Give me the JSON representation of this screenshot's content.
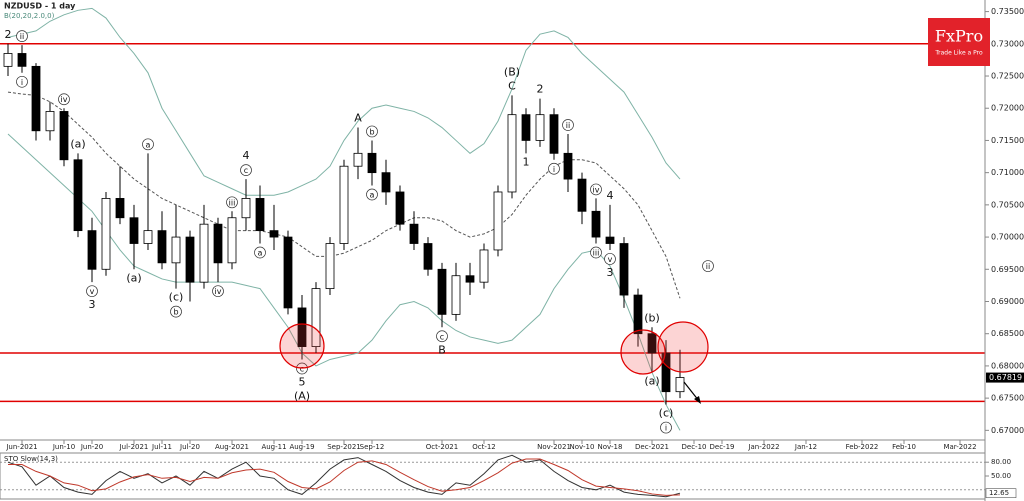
{
  "chart_data": {
    "type": "candlestick",
    "title": "NZDUSD - 1 day",
    "subtitle": "B(20,20,2.0,0)",
    "categories": [
      null,
      "Jun-2021",
      null,
      null,
      "Jun-10",
      null,
      "Jun-20",
      null,
      null,
      "Jul-2021",
      null,
      "Jul-11",
      null,
      "Jul-20",
      null,
      null,
      "Aug-2021",
      null,
      null,
      "Aug-11",
      null,
      "Aug-19",
      null,
      null,
      "Sep-2021",
      null,
      "Sep-12",
      null,
      null,
      null,
      null,
      "Oct-2021",
      null,
      null,
      "Oct-12",
      null,
      null,
      null,
      null,
      "Nov-2021",
      null,
      "Nov-10",
      null,
      "Nov-18",
      null,
      null,
      "Dec-2021",
      null,
      null,
      "Dec-10",
      null,
      "Dec-19",
      null,
      null,
      "Jan-2022",
      null,
      null,
      "Jan-12",
      null,
      null,
      null,
      "Feb-2022",
      null,
      null,
      "Feb-10",
      null,
      null,
      null,
      "Mar-2022",
      null
    ],
    "open": [
      0.7265,
      0.7285,
      0.7265,
      0.7165,
      0.7195,
      0.712,
      0.701,
      0.695,
      0.706,
      0.703,
      0.699,
      0.701,
      0.696,
      0.7,
      0.693,
      0.702,
      0.696,
      0.703,
      0.706,
      0.701,
      0.7,
      0.689,
      0.683,
      0.692,
      0.699,
      0.711,
      0.713,
      0.71,
      0.707,
      0.702,
      0.699,
      0.695,
      0.688,
      0.694,
      0.693,
      0.698,
      0.707,
      0.719,
      0.715,
      0.719,
      0.713,
      0.709,
      0.704,
      0.7,
      0.699,
      0.691,
      0.685,
      0.682,
      0.676,
      null,
      null,
      null,
      null,
      null,
      null,
      null,
      null,
      null,
      null,
      null,
      null,
      null,
      null,
      null,
      null,
      null,
      null,
      null,
      null,
      null
    ],
    "high": [
      0.73,
      0.7298,
      0.727,
      0.721,
      0.72,
      0.713,
      0.703,
      0.707,
      0.711,
      0.705,
      0.713,
      0.704,
      0.705,
      0.701,
      0.705,
      0.703,
      0.704,
      0.709,
      0.708,
      0.705,
      0.701,
      0.691,
      0.693,
      0.7,
      0.712,
      0.717,
      0.715,
      0.712,
      0.708,
      0.704,
      0.7,
      0.696,
      0.696,
      0.696,
      0.699,
      0.708,
      0.722,
      0.72,
      0.7215,
      0.72,
      0.716,
      0.71,
      0.706,
      0.705,
      0.7,
      0.692,
      0.686,
      0.684,
      0.6825,
      null,
      null,
      null,
      null,
      null,
      null,
      null,
      null,
      null,
      null,
      null,
      null,
      null,
      null,
      null,
      null,
      null,
      null,
      null,
      null,
      null
    ],
    "low": [
      0.725,
      0.7255,
      0.715,
      0.715,
      0.711,
      0.7,
      0.693,
      0.694,
      0.702,
      0.695,
      0.698,
      0.695,
      0.692,
      0.69,
      0.692,
      0.693,
      0.695,
      0.701,
      0.699,
      0.698,
      0.688,
      0.681,
      0.682,
      0.691,
      0.698,
      0.709,
      0.708,
      0.705,
      0.701,
      0.698,
      0.694,
      0.686,
      0.687,
      0.691,
      0.692,
      0.697,
      0.706,
      0.713,
      0.714,
      0.712,
      0.707,
      0.702,
      0.699,
      0.698,
      0.689,
      0.683,
      0.679,
      0.674,
      0.675,
      null,
      null,
      null,
      null,
      null,
      null,
      null,
      null,
      null,
      null,
      null,
      null,
      null,
      null,
      null,
      null,
      null,
      null,
      null,
      null,
      null
    ],
    "close": [
      0.7285,
      0.7265,
      0.7165,
      0.7195,
      0.712,
      0.701,
      0.695,
      0.706,
      0.703,
      0.699,
      0.701,
      0.696,
      0.7,
      0.693,
      0.702,
      0.696,
      0.703,
      0.706,
      0.701,
      0.7,
      0.689,
      0.683,
      0.692,
      0.699,
      0.711,
      0.713,
      0.71,
      0.707,
      0.702,
      0.699,
      0.695,
      0.688,
      0.694,
      0.693,
      0.698,
      0.707,
      0.719,
      0.715,
      0.719,
      0.713,
      0.709,
      0.704,
      0.7,
      0.699,
      0.691,
      0.685,
      0.682,
      0.676,
      0.6782,
      null,
      null,
      null,
      null,
      null,
      null,
      null,
      null,
      null,
      null,
      null,
      null,
      null,
      null,
      null,
      null,
      null,
      null,
      null,
      null,
      null
    ],
    "up_color": "#ffffff",
    "down_color": "#000000",
    "bands": [
      {
        "color": "#7fb3a6",
        "dash": false,
        "values": [
          0.731,
          0.7315,
          0.732,
          0.7335,
          0.7345,
          0.7352,
          0.7355,
          0.734,
          0.731,
          0.7285,
          0.7255,
          0.72,
          0.7165,
          0.713,
          0.7095,
          0.7085,
          0.7075,
          0.7065,
          0.7065,
          0.7065,
          0.707,
          0.708,
          0.709,
          0.711,
          0.715,
          0.718,
          0.72,
          0.7205,
          0.72,
          0.7195,
          0.7185,
          0.717,
          0.715,
          0.713,
          0.7145,
          0.718,
          0.723,
          0.729,
          0.7315,
          0.732,
          0.731,
          0.7285,
          0.7265,
          0.7245,
          0.7225,
          0.719,
          0.7155,
          0.7115,
          0.709,
          null,
          null,
          null,
          null,
          null,
          null,
          null,
          null,
          null,
          null,
          null,
          null,
          null,
          null,
          null,
          null,
          null,
          null,
          null,
          null,
          null
        ]
      },
      {
        "color": "#555555",
        "dash": true,
        "values": [
          0.7225,
          0.7222,
          0.722,
          0.721,
          0.7195,
          0.7175,
          0.7155,
          0.713,
          0.711,
          0.709,
          0.7075,
          0.706,
          0.705,
          0.704,
          0.703,
          0.702,
          0.701,
          0.701,
          0.701,
          0.7005,
          0.7,
          0.6985,
          0.697,
          0.697,
          0.6975,
          0.6985,
          0.6995,
          0.701,
          0.702,
          0.703,
          0.703,
          0.7025,
          0.701,
          0.7,
          0.7005,
          0.7015,
          0.7035,
          0.7065,
          0.709,
          0.711,
          0.712,
          0.712,
          0.7115,
          0.7095,
          0.7075,
          0.705,
          0.701,
          0.697,
          0.6905,
          null,
          null,
          null,
          null,
          null,
          null,
          null,
          null,
          null,
          null,
          null,
          null,
          null,
          null,
          null,
          null,
          null,
          null,
          null,
          null,
          null
        ]
      },
      {
        "color": "#7fb3a6",
        "dash": false,
        "values": [
          0.716,
          0.714,
          0.712,
          0.71,
          0.708,
          0.706,
          0.704,
          0.701,
          0.698,
          0.6955,
          0.6945,
          0.6935,
          0.693,
          0.693,
          0.693,
          0.693,
          0.693,
          0.6925,
          0.692,
          0.689,
          0.686,
          0.682,
          0.68,
          0.681,
          0.6815,
          0.682,
          0.684,
          0.687,
          0.6895,
          0.69,
          0.689,
          0.687,
          0.6855,
          0.6845,
          0.684,
          0.6835,
          0.684,
          0.686,
          0.688,
          0.692,
          0.695,
          0.6975,
          0.698,
          0.6955,
          0.6905,
          0.685,
          0.679,
          0.674,
          0.67,
          null,
          null,
          null,
          null,
          null,
          null,
          null,
          null,
          null,
          null,
          null,
          null,
          null,
          null,
          null,
          null,
          null,
          null,
          null,
          null,
          null
        ]
      }
    ],
    "hlines": [
      {
        "value": 0.73,
        "color": "#e00000"
      },
      {
        "value": 0.682,
        "color": "#e00000"
      },
      {
        "value": 0.6745,
        "color": "#e00000"
      }
    ],
    "last_price": 0.67819,
    "ylim": [
      0.6685,
      0.7368
    ],
    "yticks": [
      {
        "value": 0.67,
        "label": "0.67000"
      },
      {
        "value": 0.675,
        "label": "0.67500"
      },
      {
        "value": 0.68,
        "label": "0.68000"
      },
      {
        "value": 0.685,
        "label": "0.68500"
      },
      {
        "value": 0.69,
        "label": "0.69000"
      },
      {
        "value": 0.695,
        "label": "0.69500"
      },
      {
        "value": 0.7,
        "label": "0.70000"
      },
      {
        "value": 0.705,
        "label": "0.70500"
      },
      {
        "value": 0.71,
        "label": "0.71000"
      },
      {
        "value": 0.715,
        "label": "0.71500"
      },
      {
        "value": 0.72,
        "label": "0.72000"
      },
      {
        "value": 0.725,
        "label": "0.72500"
      },
      {
        "value": 0.73,
        "label": "0.73000"
      },
      {
        "value": 0.735,
        "label": "0.73500"
      }
    ],
    "labels_above": [
      [
        {
          "text": "2"
        }
      ],
      [
        {
          "text": "ii",
          "circled": true
        }
      ],
      null,
      null,
      [
        {
          "text": "iv",
          "circled": true
        }
      ],
      [
        {
          "text": "(a)"
        }
      ],
      null,
      null,
      null,
      null,
      [
        {
          "text": "a",
          "circled": true
        }
      ],
      null,
      null,
      null,
      null,
      null,
      [
        {
          "text": "iii",
          "circled": true
        }
      ],
      [
        {
          "text": "c",
          "circled": true
        },
        {
          "text": "4"
        }
      ],
      null,
      null,
      null,
      null,
      null,
      null,
      null,
      [
        {
          "text": "A"
        }
      ],
      [
        {
          "text": "b",
          "circled": true
        }
      ],
      null,
      null,
      null,
      null,
      null,
      null,
      null,
      null,
      null,
      [
        {
          "text": "C"
        },
        {
          "text": "(B)"
        }
      ],
      null,
      [
        {
          "text": "2"
        }
      ],
      null,
      [
        {
          "text": "ii",
          "circled": true
        }
      ],
      null,
      [
        {
          "text": "iv",
          "circled": true
        }
      ],
      [
        {
          "text": "4"
        }
      ],
      null,
      null,
      [
        {
          "text": "(b)"
        }
      ],
      null,
      null,
      null,
      [
        {
          "text": "ii",
          "circled": true,
          "y": 0.6955
        }
      ],
      null,
      null,
      null,
      null,
      null,
      null,
      null,
      null,
      null,
      null,
      null,
      null,
      null,
      null,
      null,
      null,
      null,
      null,
      null
    ],
    "labels_below": [
      null,
      [
        {
          "text": "i",
          "circled": true
        }
      ],
      null,
      null,
      null,
      null,
      [
        {
          "text": "v",
          "circled": true
        },
        {
          "text": "3"
        }
      ],
      null,
      null,
      [
        {
          "text": "(a)"
        }
      ],
      null,
      null,
      [
        {
          "text": "(c)"
        },
        {
          "text": "b",
          "circled": true
        }
      ],
      null,
      null,
      [
        {
          "text": "iv",
          "circled": true
        }
      ],
      null,
      null,
      [
        {
          "text": "a",
          "circled": true
        }
      ],
      null,
      null,
      [
        {
          "text": "c",
          "circled": true
        },
        {
          "text": "5"
        },
        {
          "text": "(A)"
        }
      ],
      null,
      null,
      null,
      null,
      [
        {
          "text": "a",
          "circled": true
        }
      ],
      null,
      null,
      null,
      null,
      [
        {
          "text": "c",
          "circled": true
        },
        {
          "text": "B"
        }
      ],
      null,
      null,
      null,
      null,
      null,
      [
        {
          "text": "1"
        }
      ],
      null,
      [
        {
          "text": "i",
          "circled": true
        }
      ],
      null,
      null,
      [
        {
          "text": "iii",
          "circled": true
        }
      ],
      [
        {
          "text": "v",
          "circled": true
        },
        {
          "text": "3"
        }
      ],
      null,
      null,
      [
        {
          "text": "(a)"
        }
      ],
      [
        {
          "text": "(c)"
        },
        {
          "text": "i",
          "circled": true
        }
      ],
      null,
      null,
      null,
      null,
      null,
      null,
      null,
      null,
      null,
      null,
      null,
      null,
      null,
      null,
      null,
      null,
      null,
      null,
      null,
      null,
      null,
      null
    ],
    "indicator": {
      "title": "STO Slow(14,3)",
      "ylim": [
        0,
        100
      ],
      "yticks": [
        {
          "value": 80,
          "label": "80.00"
        },
        {
          "value": 50,
          "label": "50.00"
        }
      ],
      "levels": [
        80,
        20
      ],
      "last_value": 12.65,
      "series": [
        {
          "color": "#333333",
          "values": [
            80,
            70,
            30,
            50,
            25,
            15,
            10,
            40,
            60,
            45,
            55,
            35,
            50,
            30,
            60,
            45,
            65,
            80,
            50,
            45,
            20,
            10,
            35,
            65,
            85,
            90,
            75,
            60,
            40,
            25,
            15,
            10,
            35,
            30,
            55,
            85,
            95,
            80,
            85,
            60,
            40,
            25,
            20,
            30,
            15,
            10,
            8,
            5,
            12.65,
            null,
            null,
            null,
            null,
            null,
            null,
            null,
            null,
            null,
            null,
            null,
            null,
            null,
            null,
            null,
            null,
            null,
            null,
            null,
            null,
            null
          ]
        },
        {
          "color": "#c0392b",
          "values": [
            75,
            75,
            60,
            50,
            35,
            30,
            18,
            22,
            37,
            48,
            53,
            45,
            47,
            38,
            47,
            45,
            57,
            63,
            65,
            58,
            38,
            25,
            22,
            37,
            62,
            80,
            83,
            75,
            58,
            42,
            27,
            17,
            20,
            25,
            40,
            57,
            78,
            87,
            87,
            75,
            62,
            42,
            28,
            25,
            22,
            18,
            11,
            8,
            9,
            null,
            null,
            null,
            null,
            null,
            null,
            null,
            null,
            null,
            null,
            null,
            null,
            null,
            null,
            null,
            null,
            null,
            null,
            null,
            null,
            null
          ]
        }
      ]
    }
  },
  "logo": {
    "brand": "FxPro",
    "tagline": "Trade Like a Pro"
  }
}
